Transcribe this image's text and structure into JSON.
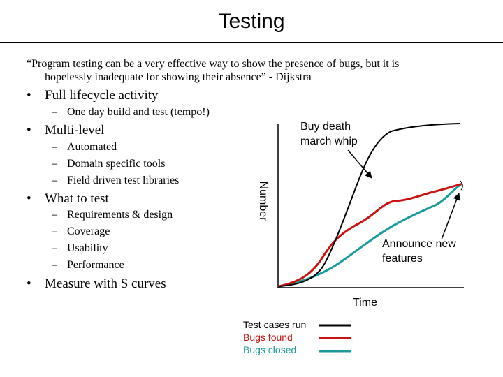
{
  "title": "Testing",
  "quote": {
    "line1": "“Program testing can be a very effective way to show the presence of bugs, but it is",
    "line2": "hopelessly inadequate for showing their absence” - Dijkstra"
  },
  "bullets": {
    "b1": "Full lifecycle activity",
    "b1_sub": [
      "One day build and test (tempo!)"
    ],
    "b2": "Multi-level",
    "b2_sub": [
      "Automated",
      "Domain specific tools",
      "Field driven test libraries"
    ],
    "b3": "What to test",
    "b3_sub": [
      "Requirements & design",
      "Coverage",
      "Usability",
      "Performance"
    ],
    "b4": "Measure with S curves"
  },
  "diagram": {
    "y_axis_label": "Number",
    "x_axis_label": "Time",
    "annotation_top": [
      "Buy death",
      "march whip"
    ],
    "annotation_right": [
      "Announce new",
      "features"
    ],
    "legend": [
      {
        "label": "Test cases run",
        "color": "#000000"
      },
      {
        "label": "Bugs found",
        "color": "#cc1111"
      },
      {
        "label": "Bugs closed",
        "color": "#1a9a9a"
      }
    ]
  }
}
